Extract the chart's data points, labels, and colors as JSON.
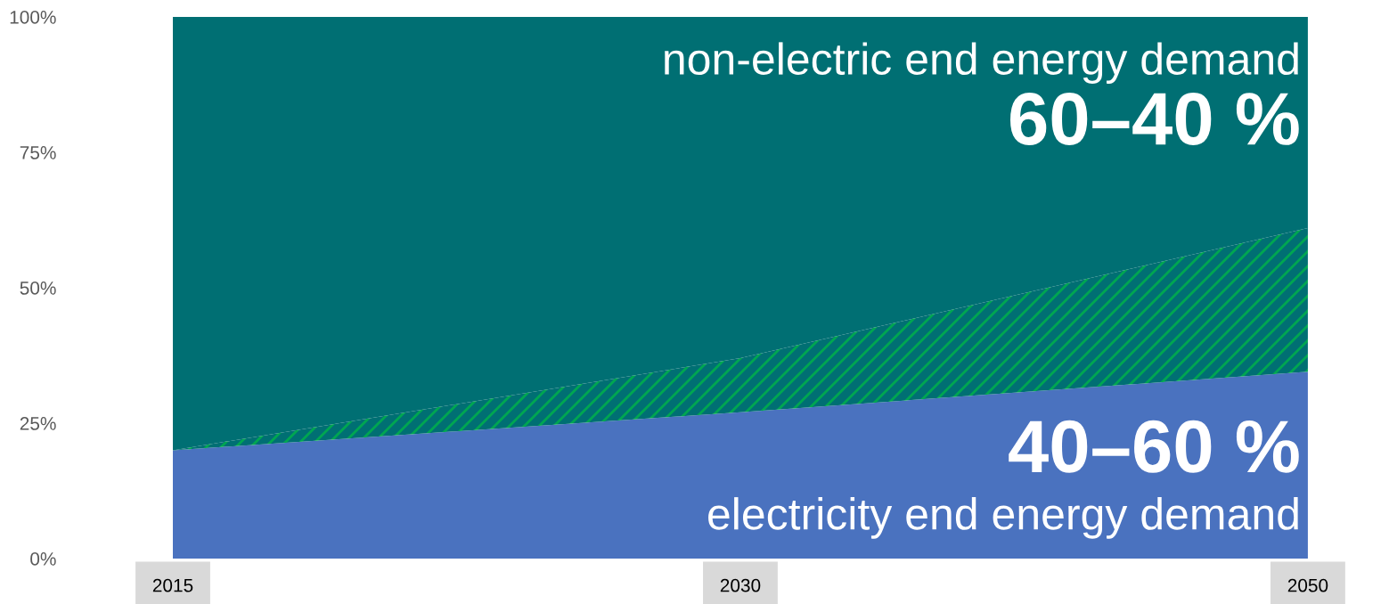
{
  "chart_data": {
    "type": "area",
    "stacked": true,
    "categories": [
      "2015",
      "2030",
      "2050"
    ],
    "series": [
      {
        "color": "#4a72bf",
        "values": [
          20,
          27,
          34.5
        ]
      },
      {
        "color": "#00a651",
        "values": [
          0,
          10,
          26.5
        ]
      },
      {
        "color": "#006f73",
        "values": [
          80,
          63,
          39
        ]
      }
    ],
    "ylim": [
      0,
      100
    ],
    "yticks": [
      {
        "value": 0,
        "label": "0%"
      },
      {
        "value": 25,
        "label": "25%"
      },
      {
        "value": 50,
        "label": "50%"
      },
      {
        "value": 75,
        "label": "75%"
      },
      {
        "value": 100,
        "label": "100%"
      }
    ],
    "grid": false,
    "annotations": [
      "non-electric end energy demand",
      "60–40 %",
      "40–60 %",
      "electricity end energy demand"
    ]
  }
}
